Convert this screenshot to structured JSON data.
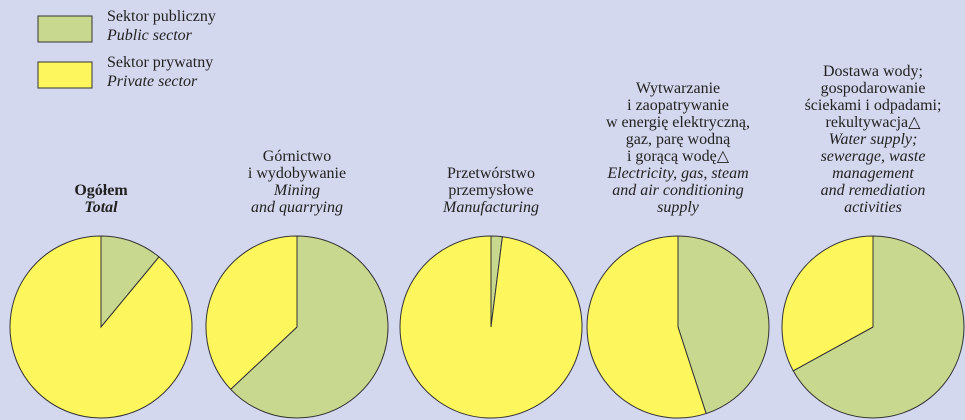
{
  "legend": {
    "labels_pl": [
      "Sektor publiczny",
      "Sektor prywatny"
    ],
    "labels_en": [
      "Public sector",
      "Private sector"
    ],
    "colors": [
      "#c8d88f",
      "#fdf65c"
    ]
  },
  "chart_data": [
    {
      "type": "pie",
      "title_pl": [
        "Ogółem"
      ],
      "title_en": [
        "Total"
      ],
      "bold": true,
      "values": [
        11,
        89
      ]
    },
    {
      "type": "pie",
      "title_pl": [
        "Górnictwo",
        "i wydobywanie"
      ],
      "title_en": [
        "Mining",
        "and quarrying"
      ],
      "bold": false,
      "values": [
        63,
        37
      ]
    },
    {
      "type": "pie",
      "title_pl": [
        "Przetwórstwo",
        "przemysłowe"
      ],
      "title_en": [
        "Manufacturing"
      ],
      "bold": false,
      "values": [
        2,
        98
      ]
    },
    {
      "type": "pie",
      "title_pl": [
        "Wytwarzanie",
        "i zaopatrywanie",
        "w energię elektryczną,",
        "gaz, parę wodną",
        "i gorącą wodę△"
      ],
      "title_en": [
        "Electricity, gas, steam",
        "and air conditioning",
        "supply"
      ],
      "bold": false,
      "values": [
        45,
        55
      ]
    },
    {
      "type": "pie",
      "title_pl": [
        "Dostawa wody;",
        "gospodarowanie",
        "ściekami i odpadami;",
        "rekultywacja△"
      ],
      "title_en": [
        "Water supply;",
        "sewerage, waste",
        "management",
        "and remediation",
        "activities"
      ],
      "bold": false,
      "values": [
        67,
        33
      ]
    }
  ]
}
